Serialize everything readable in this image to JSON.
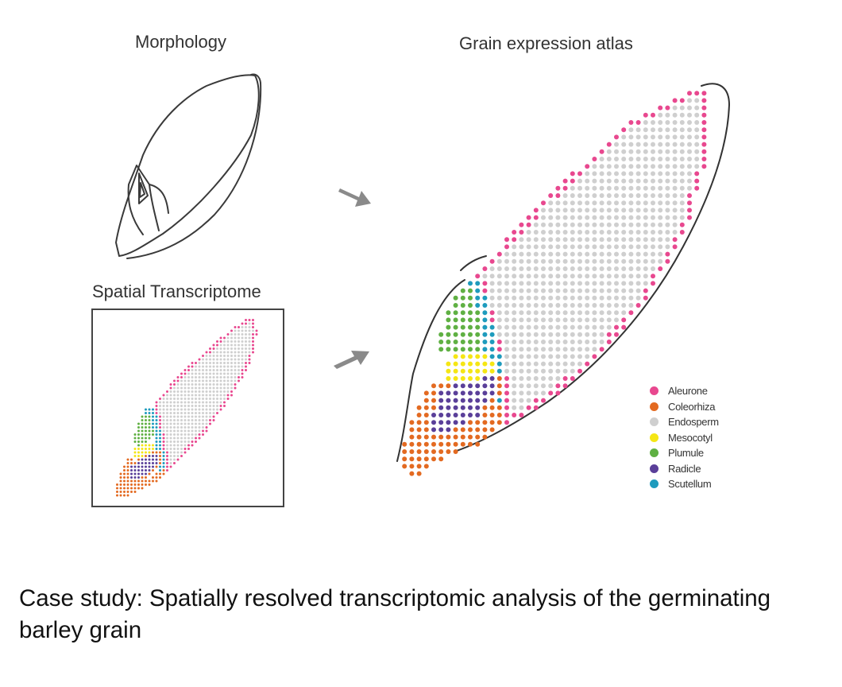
{
  "titles": {
    "morphology": "Morphology",
    "atlas": "Grain expression atlas",
    "spatial": "Spatial Transcriptome"
  },
  "legend": [
    {
      "label": "Aleurone",
      "color": "#e8488f"
    },
    {
      "label": "Coleorhiza",
      "color": "#e36a21"
    },
    {
      "label": "Endosperm",
      "color": "#cfcfcf"
    },
    {
      "label": "Mesocotyl",
      "color": "#f5e614"
    },
    {
      "label": "Plumule",
      "color": "#5fb043"
    },
    {
      "label": "Radicle",
      "color": "#5a3f99"
    },
    {
      "label": "Scutellum",
      "color": "#1e9bbd"
    }
  ],
  "caption": "Case study: Spatially resolved transcriptomic analysis of the germinating barley grain"
}
